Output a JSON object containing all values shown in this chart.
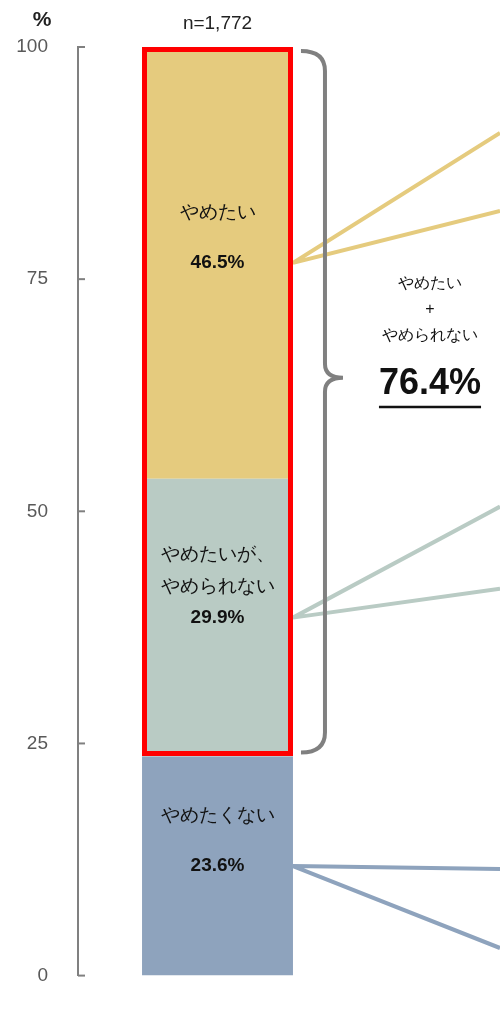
{
  "chart_data": {
    "type": "bar",
    "stacked": true,
    "categories": [
      "n=1,772"
    ],
    "ylabel": "%",
    "ylim": [
      0,
      100
    ],
    "yticks": [
      0,
      25,
      50,
      75,
      100
    ],
    "legend": false,
    "series": [
      {
        "name": "やめたくない",
        "color": "#8ea3bd",
        "values": [
          23.6
        ],
        "value_labels": [
          "23.6%"
        ]
      },
      {
        "name": "やめたいが、やめられない",
        "color": "#b9cbc4",
        "values": [
          29.9
        ],
        "value_labels": [
          "29.9%"
        ]
      },
      {
        "name": "やめたい",
        "color": "#e5cb7e",
        "values": [
          46.5
        ],
        "value_labels": [
          "46.5%"
        ]
      }
    ],
    "annotations": [
      "やめたい\n+\nやめられない",
      "76.4%"
    ]
  }
}
